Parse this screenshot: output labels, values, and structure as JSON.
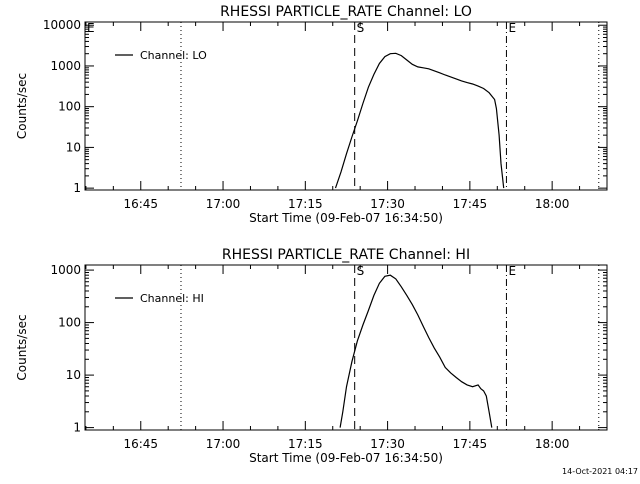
{
  "footer": {
    "timestamp": "14-Oct-2021 04:17"
  },
  "chart_data": [
    {
      "type": "line",
      "title": "RHESSI PARTICLE_RATE Channel: LO",
      "xlabel": "Start Time (09-Feb-07 16:34:50)",
      "ylabel": "Counts/sec",
      "y_scale": "log",
      "xlim": [
        "16:34:50",
        "18:10:00"
      ],
      "ylim": [
        0.9,
        12000
      ],
      "x_ticks": [
        "16:45",
        "17:00",
        "17:15",
        "17:30",
        "17:45",
        "18:00"
      ],
      "y_ticks": [
        {
          "value": 1,
          "label": "1"
        },
        {
          "value": 10,
          "label": "10"
        },
        {
          "value": 100,
          "label": "100"
        },
        {
          "value": 1000,
          "label": "1000"
        },
        {
          "value": 10000,
          "label": "10000"
        }
      ],
      "legend": {
        "position": "top-left",
        "entries": [
          "Channel: LO"
        ]
      },
      "markers": [
        {
          "time": "16:52:20",
          "style": "dotted",
          "label": ""
        },
        {
          "time": "17:24:00",
          "style": "dashed",
          "label": "S"
        },
        {
          "time": "17:51:40",
          "style": "dashdot",
          "label": "E"
        },
        {
          "time": "18:08:30",
          "style": "dotted",
          "label": ""
        },
        {
          "time": "16:34:50",
          "style": "none",
          "label": "E"
        }
      ],
      "series": [
        {
          "name": "Channel: LO",
          "x": [
            "17:20:30",
            "17:21:30",
            "17:22:30",
            "17:23:30",
            "17:24:30",
            "17:25:30",
            "17:26:30",
            "17:27:30",
            "17:28:30",
            "17:29:30",
            "17:30:30",
            "17:31:30",
            "17:32:30",
            "17:33:30",
            "17:34:30",
            "17:35:30",
            "17:36:30",
            "17:37:30",
            "17:38:30",
            "17:39:30",
            "17:40:30",
            "17:41:30",
            "17:42:30",
            "17:43:30",
            "17:44:30",
            "17:45:30",
            "17:46:30",
            "17:47:30",
            "17:48:30",
            "17:49:30",
            "17:49:50",
            "17:50:20",
            "17:50:40",
            "17:51:10"
          ],
          "values": [
            1,
            2.5,
            7,
            18,
            45,
            120,
            300,
            620,
            1150,
            1700,
            2000,
            2050,
            1800,
            1400,
            1100,
            950,
            900,
            850,
            760,
            680,
            600,
            540,
            480,
            430,
            390,
            360,
            320,
            280,
            220,
            150,
            90,
            20,
            4,
            1
          ]
        }
      ]
    },
    {
      "type": "line",
      "title": "RHESSI PARTICLE_RATE Channel: HI",
      "xlabel": "Start Time (09-Feb-07 16:34:50)",
      "ylabel": "Counts/sec",
      "y_scale": "log",
      "xlim": [
        "16:34:50",
        "18:10:00"
      ],
      "ylim": [
        0.9,
        1250
      ],
      "x_ticks": [
        "16:45",
        "17:00",
        "17:15",
        "17:30",
        "17:45",
        "18:00"
      ],
      "y_ticks": [
        {
          "value": 1,
          "label": "1"
        },
        {
          "value": 10,
          "label": "10"
        },
        {
          "value": 100,
          "label": "100"
        },
        {
          "value": 1000,
          "label": "1000"
        }
      ],
      "legend": {
        "position": "top-left",
        "entries": [
          "Channel: HI"
        ]
      },
      "markers": [
        {
          "time": "16:52:20",
          "style": "dotted",
          "label": ""
        },
        {
          "time": "17:24:00",
          "style": "dashed",
          "label": "S"
        },
        {
          "time": "17:51:40",
          "style": "dashdot",
          "label": "E"
        },
        {
          "time": "18:08:30",
          "style": "dotted",
          "label": ""
        }
      ],
      "series": [
        {
          "name": "Channel: HI",
          "x": [
            "17:21:20",
            "17:21:50",
            "17:22:30",
            "17:23:30",
            "17:24:30",
            "17:25:30",
            "17:26:30",
            "17:27:30",
            "17:28:30",
            "17:29:30",
            "17:30:30",
            "17:31:30",
            "17:32:30",
            "17:33:30",
            "17:34:30",
            "17:35:30",
            "17:36:30",
            "17:37:30",
            "17:38:30",
            "17:39:30",
            "17:40:30",
            "17:41:30",
            "17:42:30",
            "17:43:30",
            "17:44:30",
            "17:45:30",
            "17:46:30",
            "17:47:00",
            "17:47:30",
            "17:48:00",
            "17:48:30",
            "17:49:00"
          ],
          "values": [
            1,
            2,
            6,
            18,
            45,
            90,
            170,
            330,
            560,
            760,
            800,
            680,
            480,
            330,
            220,
            140,
            85,
            52,
            33,
            22,
            14,
            11,
            9,
            7.5,
            6.5,
            6,
            6.5,
            5.5,
            5,
            4,
            2,
            1
          ]
        }
      ]
    }
  ]
}
